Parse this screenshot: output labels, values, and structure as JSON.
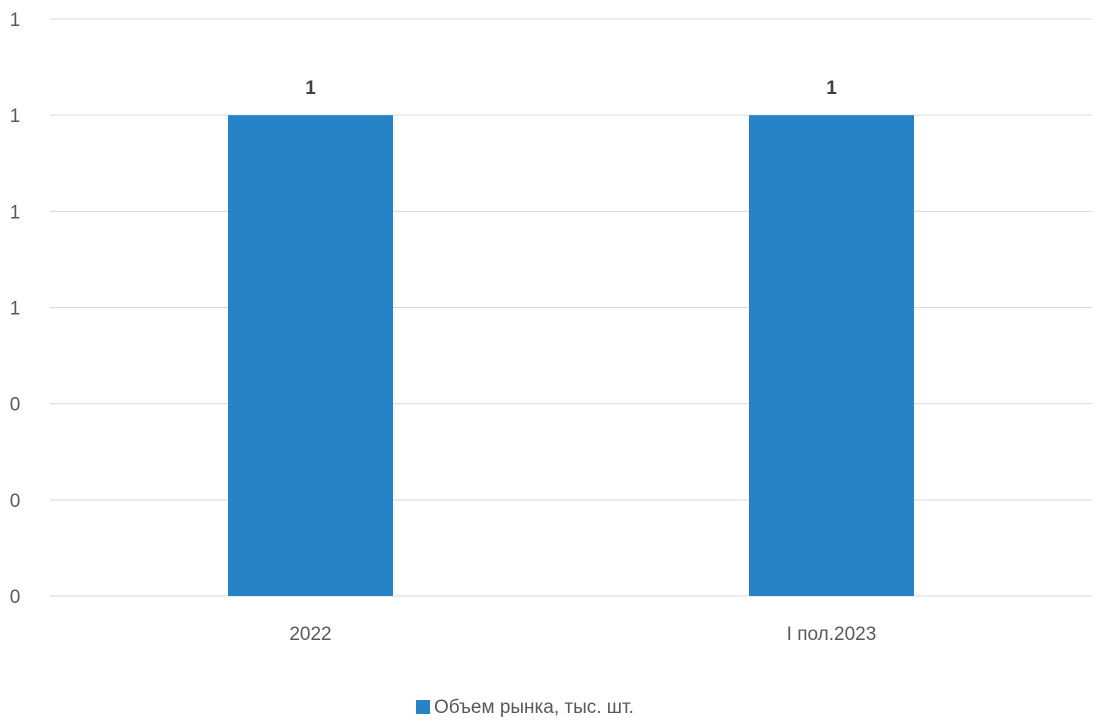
{
  "chart_data": {
    "type": "bar",
    "categories": [
      "2022",
      "I пол.2023"
    ],
    "series": [
      {
        "name": "Объем рынка, тыс. шт.",
        "values": [
          0.75,
          0.75
        ],
        "data_labels": [
          "1",
          "1"
        ],
        "color": "#2683c6"
      }
    ],
    "y_tick_labels": [
      "0",
      "0",
      "0",
      "1",
      "1",
      "1",
      "1"
    ],
    "ylim": [
      0,
      0.9
    ],
    "y_tick_step": 0.15,
    "grid": true,
    "legend_position": "bottom",
    "title": "",
    "xlabel": "",
    "ylabel": ""
  }
}
